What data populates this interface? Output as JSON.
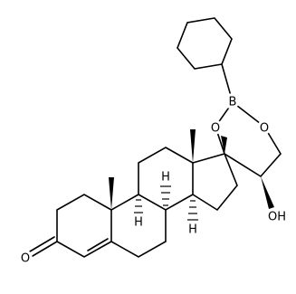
{
  "atom_labels": [
    "B",
    "O",
    "O",
    "OH",
    "O",
    "H",
    "H",
    "H"
  ]
}
